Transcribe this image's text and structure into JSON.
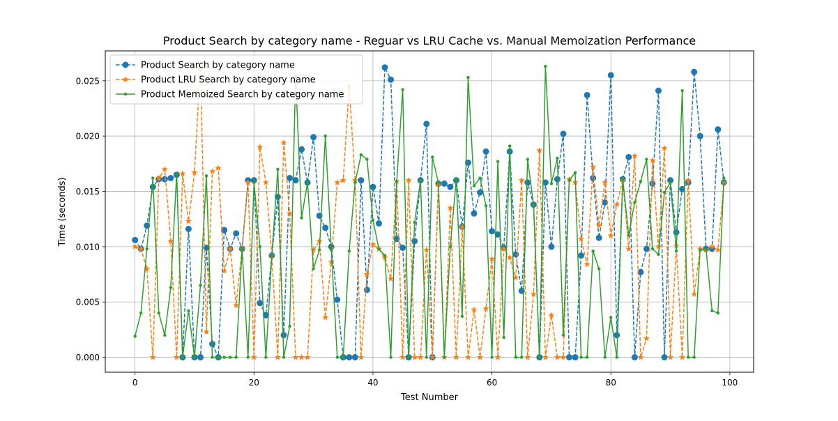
{
  "chart_data": {
    "type": "line",
    "title": "Product Search by category name - Reguar vs LRU Cache vs. Manual Memoization Performance",
    "xlabel": "Test Number",
    "ylabel": "Time (seconds)",
    "xlim": [
      -5,
      104
    ],
    "ylim": [
      -0.00135,
      0.0277
    ],
    "xticks": [
      0,
      20,
      40,
      60,
      80,
      100
    ],
    "xtick_labels": [
      "0",
      "20",
      "40",
      "60",
      "80",
      "100"
    ],
    "yticks": [
      0.0,
      0.005,
      0.01,
      0.015,
      0.02,
      0.025
    ],
    "ytick_labels": [
      "0.000",
      "0.005",
      "0.010",
      "0.015",
      "0.020",
      "0.025"
    ],
    "grid": true,
    "legend_position": "top-left",
    "x": [
      0,
      1,
      2,
      3,
      4,
      5,
      6,
      7,
      8,
      9,
      10,
      11,
      12,
      13,
      14,
      15,
      16,
      17,
      18,
      19,
      20,
      21,
      22,
      23,
      24,
      25,
      26,
      27,
      28,
      29,
      30,
      31,
      32,
      33,
      34,
      35,
      36,
      37,
      38,
      39,
      40,
      41,
      42,
      43,
      44,
      45,
      46,
      47,
      48,
      49,
      50,
      51,
      52,
      53,
      54,
      55,
      56,
      57,
      58,
      59,
      60,
      61,
      62,
      63,
      64,
      65,
      66,
      67,
      68,
      69,
      70,
      71,
      72,
      73,
      74,
      75,
      76,
      77,
      78,
      79,
      80,
      81,
      82,
      83,
      84,
      85,
      86,
      87,
      88,
      89,
      90,
      91,
      92,
      93,
      94,
      95,
      96,
      97,
      98,
      99
    ],
    "series": [
      {
        "name": "Product Search by category name",
        "color": "#1f77b4",
        "linestyle": "dashed",
        "marker": "circle",
        "values": [
          0.0106,
          0.0098,
          0.0119,
          0.0154,
          0.0161,
          0.0161,
          0.0162,
          0.0165,
          0.0,
          0.0116,
          0.0,
          0.0,
          0.0099,
          0.0012,
          0.0,
          0.0115,
          0.0098,
          0.0112,
          0.0098,
          0.016,
          0.016,
          0.0049,
          0.0038,
          0.0092,
          0.0145,
          0.002,
          0.0162,
          0.016,
          0.0188,
          0.0158,
          0.0199,
          0.0128,
          0.0117,
          0.01,
          0.0052,
          0.0,
          0.0,
          0.0,
          0.016,
          0.0061,
          0.0154,
          0.0121,
          0.0262,
          0.0251,
          0.0107,
          0.0099,
          0.0,
          0.0105,
          0.016,
          0.0211,
          0.0,
          0.0157,
          0.0157,
          0.0154,
          0.016,
          0.0118,
          0.0176,
          0.013,
          0.0149,
          0.0186,
          0.0114,
          0.0111,
          0.0099,
          0.0186,
          0.0093,
          0.006,
          0.0158,
          0.0138,
          0.0,
          0.0158,
          0.01,
          0.0161,
          0.0202,
          0.0,
          0.0,
          0.0092,
          0.0237,
          0.0162,
          0.0108,
          0.014,
          0.0255,
          0.002,
          0.0161,
          0.0181,
          0.0,
          0.0077,
          0.0098,
          0.0157,
          0.0241,
          0.0,
          0.016,
          0.0113,
          0.0152,
          0.0158,
          0.0258,
          0.02,
          0.0098,
          0.0098,
          0.0206,
          0.0158
        ]
      },
      {
        "name": "Product LRU Search by category name",
        "color": "#ff7f0e",
        "linestyle": "dashed",
        "marker": "star",
        "values": [
          0.01,
          0.0098,
          0.008,
          0.0,
          0.0162,
          0.017,
          0.0105,
          0.0,
          0.0166,
          0.0123,
          0.0167,
          0.0265,
          0.0023,
          0.0168,
          0.0171,
          0.0078,
          0.0098,
          0.0047,
          0.0098,
          0.0158,
          0.0,
          0.019,
          0.0158,
          0.0092,
          0.0,
          0.0194,
          0.013,
          0.0,
          0.0,
          0.0,
          0.0097,
          0.0105,
          0.0036,
          0.0086,
          0.0158,
          0.016,
          0.0245,
          0.016,
          0.0,
          0.0075,
          0.0102,
          0.0098,
          0.009,
          0.0071,
          0.0159,
          0.0,
          0.016,
          0.0,
          0.0,
          0.0097,
          0.0,
          0.0156,
          0.0,
          0.0135,
          0.0,
          0.0118,
          0.0,
          0.0043,
          0.0,
          0.0044,
          0.0089,
          0.0,
          0.0098,
          0.009,
          0.0072,
          0.016,
          0.0,
          0.0057,
          0.0187,
          0.0,
          0.0038,
          0.0,
          0.0,
          0.0161,
          0.0158,
          0.0107,
          0.0084,
          0.0172,
          0.0119,
          0.0158,
          0.011,
          0.0138,
          0.016,
          0.0098,
          0.0182,
          0.0,
          0.0017,
          0.0178,
          0.01,
          0.0189,
          0.0,
          0.0101,
          0.0,
          0.016,
          0.0057,
          0.0098,
          0.0097,
          0.01,
          0.0097,
          0.0158
        ]
      },
      {
        "name": "Product Memoized Search by category name",
        "color": "#2ca02c",
        "linestyle": "solid",
        "marker": "point",
        "values": [
          0.0019,
          0.004,
          0.0098,
          0.0162,
          0.004,
          0.002,
          0.0063,
          0.0166,
          0.0,
          0.0042,
          0.0,
          0.0065,
          0.0164,
          0.0,
          0.0,
          0.0,
          0.0,
          0.0,
          0.0098,
          0.0,
          0.0158,
          0.01,
          0.0,
          0.0092,
          0.017,
          0.0,
          0.0028,
          0.0255,
          0.0126,
          0.0158,
          0.008,
          0.0097,
          0.02,
          0.0097,
          0.0,
          0.0,
          0.0096,
          0.0158,
          0.0183,
          0.0179,
          0.0124,
          0.0098,
          0.0092,
          0.0,
          0.0159,
          0.0242,
          0.0,
          0.0122,
          0.016,
          0.0,
          0.0181,
          0.0158,
          0.0,
          0.01,
          0.0161,
          0.0037,
          0.0253,
          0.0155,
          0.0162,
          0.0137,
          0.0,
          0.0177,
          0.0018,
          0.0191,
          0.0,
          0.0,
          0.0179,
          0.0138,
          0.0,
          0.0263,
          0.0157,
          0.018,
          0.002,
          0.016,
          0.0167,
          0.0,
          0.0,
          0.0096,
          0.008,
          0.0,
          0.0036,
          0.0,
          0.0161,
          0.011,
          0.014,
          0.0159,
          0.0179,
          0.0098,
          0.0093,
          0.0149,
          0.0158,
          0.0096,
          0.0241,
          0.0,
          0.0,
          0.0097,
          0.0098,
          0.0042,
          0.004,
          0.0162
        ]
      }
    ]
  }
}
